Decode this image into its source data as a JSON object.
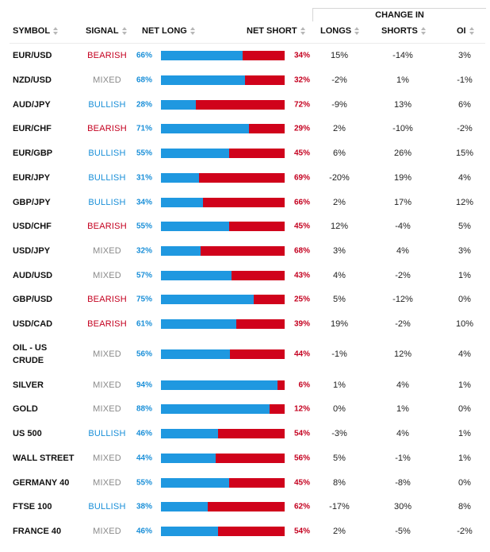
{
  "header": {
    "group_label": "CHANGE IN",
    "symbol": "SYMBOL",
    "signal": "SIGNAL",
    "net_long": "NET LONG",
    "net_short": "NET SHORT",
    "longs": "LONGS",
    "shorts": "SHORTS",
    "oi": "OI"
  },
  "colors": {
    "bearish": "#c4001f",
    "bullish": "#1a8fd8",
    "mixed": "#8a8a8a",
    "long_bar": "#1f98e0",
    "short_bar": "#d0021b"
  },
  "rows": [
    {
      "symbol": "EUR/USD",
      "signal": "BEARISH",
      "net_long": "66%",
      "long_pct": 66,
      "net_short": "34%",
      "longs": "15%",
      "shorts": "-14%",
      "oi": "3%"
    },
    {
      "symbol": "NZD/USD",
      "signal": "MIXED",
      "net_long": "68%",
      "long_pct": 68,
      "net_short": "32%",
      "longs": "-2%",
      "shorts": "1%",
      "oi": "-1%"
    },
    {
      "symbol": "AUD/JPY",
      "signal": "BULLISH",
      "net_long": "28%",
      "long_pct": 28,
      "net_short": "72%",
      "longs": "-9%",
      "shorts": "13%",
      "oi": "6%"
    },
    {
      "symbol": "EUR/CHF",
      "signal": "BEARISH",
      "net_long": "71%",
      "long_pct": 71,
      "net_short": "29%",
      "longs": "2%",
      "shorts": "-10%",
      "oi": "-2%"
    },
    {
      "symbol": "EUR/GBP",
      "signal": "BULLISH",
      "net_long": "55%",
      "long_pct": 55,
      "net_short": "45%",
      "longs": "6%",
      "shorts": "26%",
      "oi": "15%"
    },
    {
      "symbol": "EUR/JPY",
      "signal": "BULLISH",
      "net_long": "31%",
      "long_pct": 31,
      "net_short": "69%",
      "longs": "-20%",
      "shorts": "19%",
      "oi": "4%"
    },
    {
      "symbol": "GBP/JPY",
      "signal": "BULLISH",
      "net_long": "34%",
      "long_pct": 34,
      "net_short": "66%",
      "longs": "2%",
      "shorts": "17%",
      "oi": "12%"
    },
    {
      "symbol": "USD/CHF",
      "signal": "BEARISH",
      "net_long": "55%",
      "long_pct": 55,
      "net_short": "45%",
      "longs": "12%",
      "shorts": "-4%",
      "oi": "5%"
    },
    {
      "symbol": "USD/JPY",
      "signal": "MIXED",
      "net_long": "32%",
      "long_pct": 32,
      "net_short": "68%",
      "longs": "3%",
      "shorts": "4%",
      "oi": "3%"
    },
    {
      "symbol": "AUD/USD",
      "signal": "MIXED",
      "net_long": "57%",
      "long_pct": 57,
      "net_short": "43%",
      "longs": "4%",
      "shorts": "-2%",
      "oi": "1%"
    },
    {
      "symbol": "GBP/USD",
      "signal": "BEARISH",
      "net_long": "75%",
      "long_pct": 75,
      "net_short": "25%",
      "longs": "5%",
      "shorts": "-12%",
      "oi": "0%"
    },
    {
      "symbol": "USD/CAD",
      "signal": "BEARISH",
      "net_long": "61%",
      "long_pct": 61,
      "net_short": "39%",
      "longs": "19%",
      "shorts": "-2%",
      "oi": "10%"
    },
    {
      "symbol": "OIL - US CRUDE",
      "signal": "MIXED",
      "net_long": "56%",
      "long_pct": 56,
      "net_short": "44%",
      "longs": "-1%",
      "shorts": "12%",
      "oi": "4%"
    },
    {
      "symbol": "SILVER",
      "signal": "MIXED",
      "net_long": "94%",
      "long_pct": 94,
      "net_short": "6%",
      "longs": "1%",
      "shorts": "4%",
      "oi": "1%"
    },
    {
      "symbol": "GOLD",
      "signal": "MIXED",
      "net_long": "88%",
      "long_pct": 88,
      "net_short": "12%",
      "longs": "0%",
      "shorts": "1%",
      "oi": "0%"
    },
    {
      "symbol": "US 500",
      "signal": "BULLISH",
      "net_long": "46%",
      "long_pct": 46,
      "net_short": "54%",
      "longs": "-3%",
      "shorts": "4%",
      "oi": "1%"
    },
    {
      "symbol": "WALL STREET",
      "signal": "MIXED",
      "net_long": "44%",
      "long_pct": 44,
      "net_short": "56%",
      "longs": "5%",
      "shorts": "-1%",
      "oi": "1%"
    },
    {
      "symbol": "GERMANY 40",
      "signal": "MIXED",
      "net_long": "55%",
      "long_pct": 55,
      "net_short": "45%",
      "longs": "8%",
      "shorts": "-8%",
      "oi": "0%"
    },
    {
      "symbol": "FTSE 100",
      "signal": "BULLISH",
      "net_long": "38%",
      "long_pct": 38,
      "net_short": "62%",
      "longs": "-17%",
      "shorts": "30%",
      "oi": "8%"
    },
    {
      "symbol": "FRANCE 40",
      "signal": "MIXED",
      "net_long": "46%",
      "long_pct": 46,
      "net_short": "54%",
      "longs": "2%",
      "shorts": "-5%",
      "oi": "-2%"
    }
  ]
}
